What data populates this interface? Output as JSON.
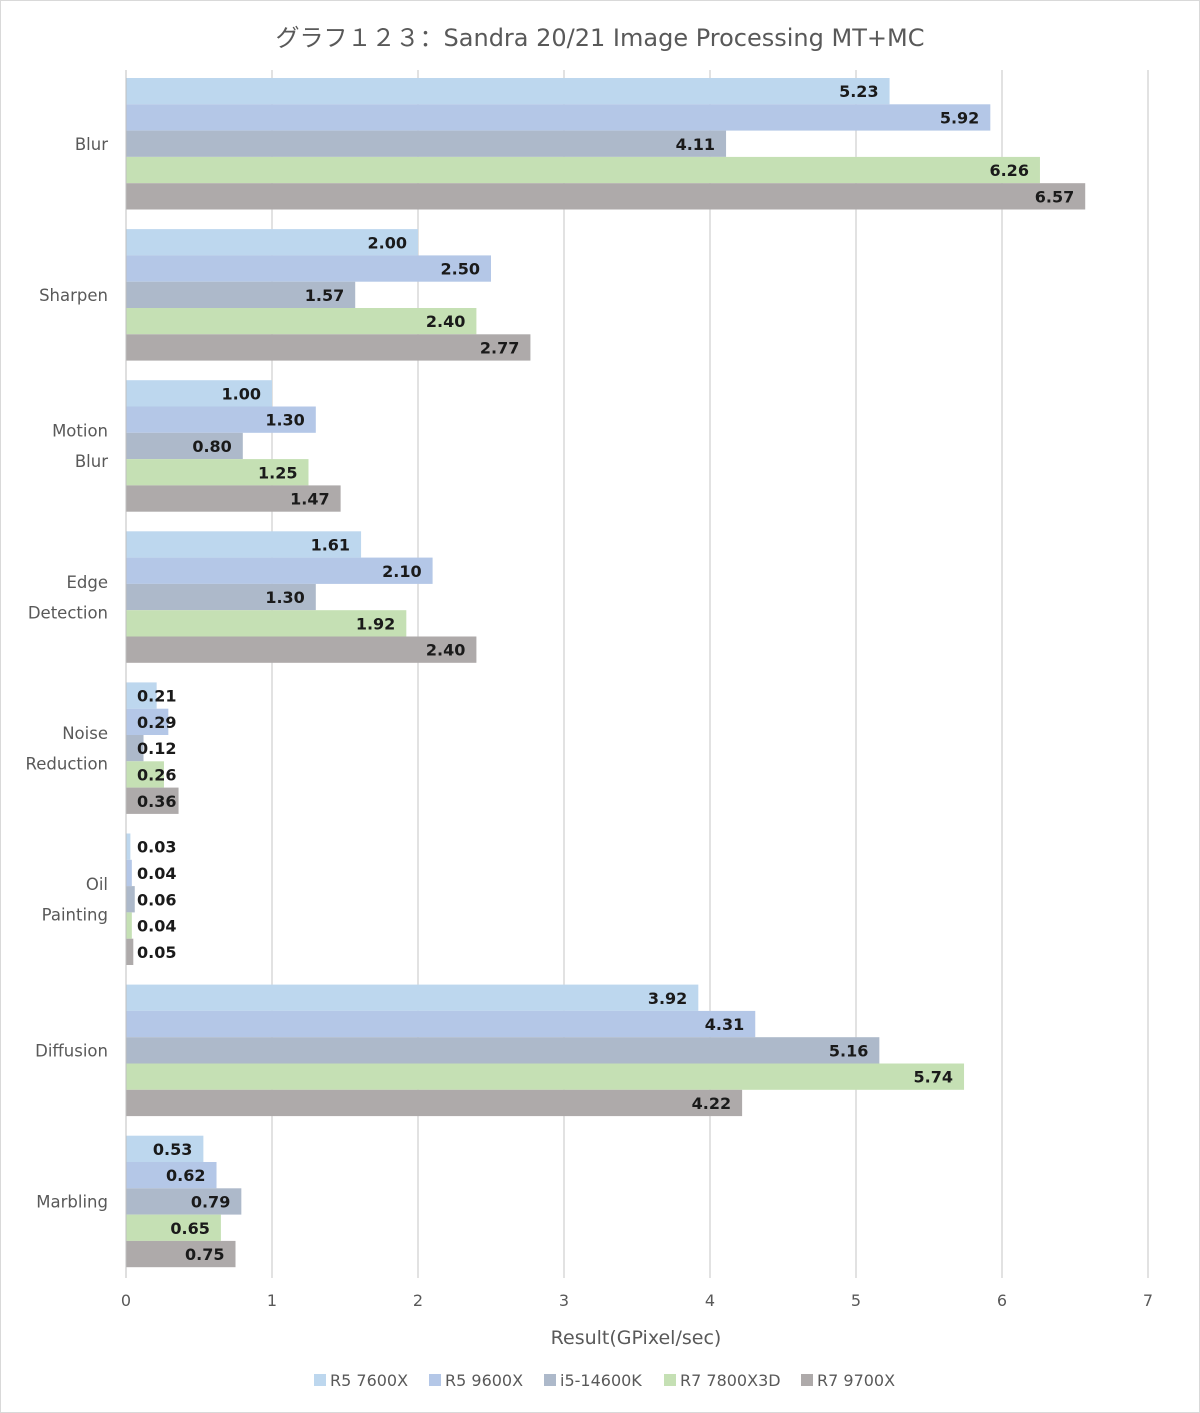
{
  "chart_data": {
    "type": "bar",
    "orientation": "horizontal",
    "title": "グラフ１２３：Sandra 20/21 Image Processing MT+MC",
    "xlabel": "Result(GPixel/sec)",
    "ylabel": "",
    "xlim": [
      0,
      7
    ],
    "x_ticks": [
      "0",
      "1",
      "2",
      "3",
      "4",
      "5",
      "6",
      "7"
    ],
    "grid": "vertical",
    "legend_position": "bottom",
    "categories": [
      [
        "Blur"
      ],
      [
        "Sharpen"
      ],
      [
        "Motion",
        "Blur"
      ],
      [
        "Edge",
        "Detection"
      ],
      [
        "Noise",
        "Reduction"
      ],
      [
        "Oil",
        "Painting"
      ],
      [
        "Diffusion"
      ],
      [
        "Marbling"
      ]
    ],
    "series": [
      {
        "name": "R5 7600X",
        "color": "#bdd7ee",
        "values": [
          5.23,
          2.0,
          1.0,
          1.61,
          0.21,
          0.03,
          3.92,
          0.53
        ],
        "labels": [
          "5.23",
          "2.00",
          "1.00",
          "1.61",
          "0.21",
          "0.03",
          "3.92",
          "0.53"
        ]
      },
      {
        "name": "R5 9600X",
        "color": "#b4c7e7",
        "values": [
          5.92,
          2.5,
          1.3,
          2.1,
          0.29,
          0.04,
          4.31,
          0.62
        ],
        "labels": [
          "5.92",
          "2.50",
          "1.30",
          "2.10",
          "0.29",
          "0.04",
          "4.31",
          "0.62"
        ]
      },
      {
        "name": "i5-14600K",
        "color": "#adb9ca",
        "values": [
          4.11,
          1.57,
          0.8,
          1.3,
          0.12,
          0.06,
          5.16,
          0.79
        ],
        "labels": [
          "4.11",
          "1.57",
          "0.80",
          "1.30",
          "0.12",
          "0.06",
          "5.16",
          "0.79"
        ]
      },
      {
        "name": "R7 7800X3D",
        "color": "#c5e0b4",
        "values": [
          6.26,
          2.4,
          1.25,
          1.92,
          0.26,
          0.04,
          5.74,
          0.65
        ],
        "labels": [
          "6.26",
          "2.40",
          "1.25",
          "1.92",
          "0.26",
          "0.04",
          "5.74",
          "0.65"
        ]
      },
      {
        "name": "R7 9700X",
        "color": "#aeaaaa",
        "values": [
          6.57,
          2.77,
          1.47,
          2.4,
          0.36,
          0.05,
          4.22,
          0.75
        ],
        "labels": [
          "6.57",
          "2.77",
          "1.47",
          "2.40",
          "0.36",
          "0.05",
          "4.22",
          "0.75"
        ]
      }
    ]
  }
}
